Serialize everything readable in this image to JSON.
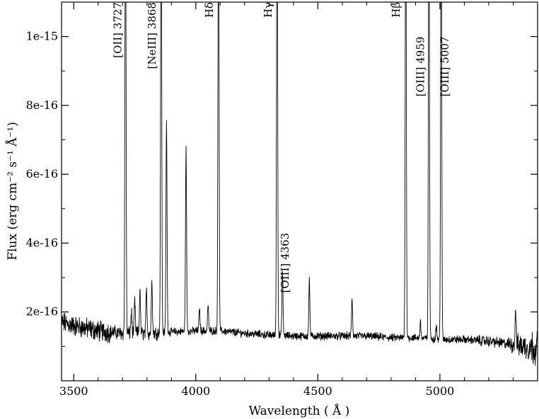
{
  "chart_data": {
    "type": "line",
    "title": "",
    "xlabel": "Wavelength  ( Å )",
    "ylabel": "Flux (erg cm⁻² s⁻¹ Å⁻¹)",
    "xlim": [
      3450,
      5400
    ],
    "ylim": [
      0,
      1.1e-15
    ],
    "x_scale": "linear",
    "y_scale": "linear",
    "grid": false,
    "legend": "none",
    "line_color": "#000000",
    "x_ticks": [
      3500,
      4000,
      4500,
      5000
    ],
    "x_tick_labels": [
      "3500",
      "4000",
      "4500",
      "5000"
    ],
    "y_ticks": [
      2e-16,
      4e-16,
      6e-16,
      8e-16,
      1e-15
    ],
    "y_tick_labels": [
      "2e-16",
      "4e-16",
      "6e-16",
      "8e-16",
      "1e-15"
    ],
    "continuum": {
      "x": [
        3450,
        3500,
        3600,
        3700,
        3800,
        3900,
        4000,
        4100,
        4200,
        4300,
        4400,
        4500,
        4600,
        4700,
        4800,
        4900,
        5000,
        5100,
        5200,
        5300,
        5400
      ],
      "y": [
        1.7e-16,
        1.6e-16,
        1.45e-16,
        1.38e-16,
        1.38e-16,
        1.42e-16,
        1.45e-16,
        1.45e-16,
        1.38e-16,
        1.33e-16,
        1.3e-16,
        1.3e-16,
        1.3e-16,
        1.3e-16,
        1.25e-16,
        1.25e-16,
        1.2e-16,
        1.2e-16,
        1.15e-16,
        1.05e-16,
        9.5e-17
      ]
    },
    "emission_lines": [
      {
        "x": 3712,
        "peak": 1.5e-15
      },
      {
        "x": 3736,
        "peak": 2e-16
      },
      {
        "x": 3750,
        "peak": 2.3e-16
      },
      {
        "x": 3771,
        "peak": 2.6e-16
      },
      {
        "x": 3798,
        "peak": 2.6e-16
      },
      {
        "x": 3820,
        "peak": 3e-16
      },
      {
        "x": 3858,
        "peak": 1.5e-15
      },
      {
        "x": 3880,
        "peak": 7.5e-16
      },
      {
        "x": 3960,
        "peak": 6.75e-16
      },
      {
        "x": 4015,
        "peak": 2.1e-16
      },
      {
        "x": 4050,
        "peak": 2.2e-16
      },
      {
        "x": 4093,
        "peak": 1.5e-15
      },
      {
        "x": 4333,
        "peak": 1.5e-15
      },
      {
        "x": 4355,
        "peak": 3.2e-16
      },
      {
        "x": 4465,
        "peak": 2.9e-16
      },
      {
        "x": 4640,
        "peak": 2.4e-16
      },
      {
        "x": 4860,
        "peak": 1.5e-15
      },
      {
        "x": 4920,
        "peak": 1.7e-16
      },
      {
        "x": 4955,
        "peak": 1.5e-15
      },
      {
        "x": 4985,
        "peak": 1.6e-16
      },
      {
        "x": 5005,
        "peak": 1.5e-15
      },
      {
        "x": 5310,
        "peak": 2.1e-16
      }
    ],
    "annotations": [
      {
        "text": "[OII] 3727",
        "x": 3695,
        "y": 1.1e-15
      },
      {
        "text": "[NeIII] 3868",
        "x": 3835,
        "y": 1.1e-15
      },
      {
        "text": "Hδ",
        "x": 4070,
        "y": 1.1e-15
      },
      {
        "text": "Hγ",
        "x": 4310,
        "y": 1.1e-15
      },
      {
        "text": "[OIII] 4363",
        "x": 4380,
        "y": 4.3e-16
      },
      {
        "text": "Hβ",
        "x": 4835,
        "y": 1.1e-15
      },
      {
        "text": "[OIII] 4959",
        "x": 4935,
        "y": 1e-15
      },
      {
        "text": "[OIII] 5007",
        "x": 5035,
        "y": 1e-15
      }
    ]
  }
}
